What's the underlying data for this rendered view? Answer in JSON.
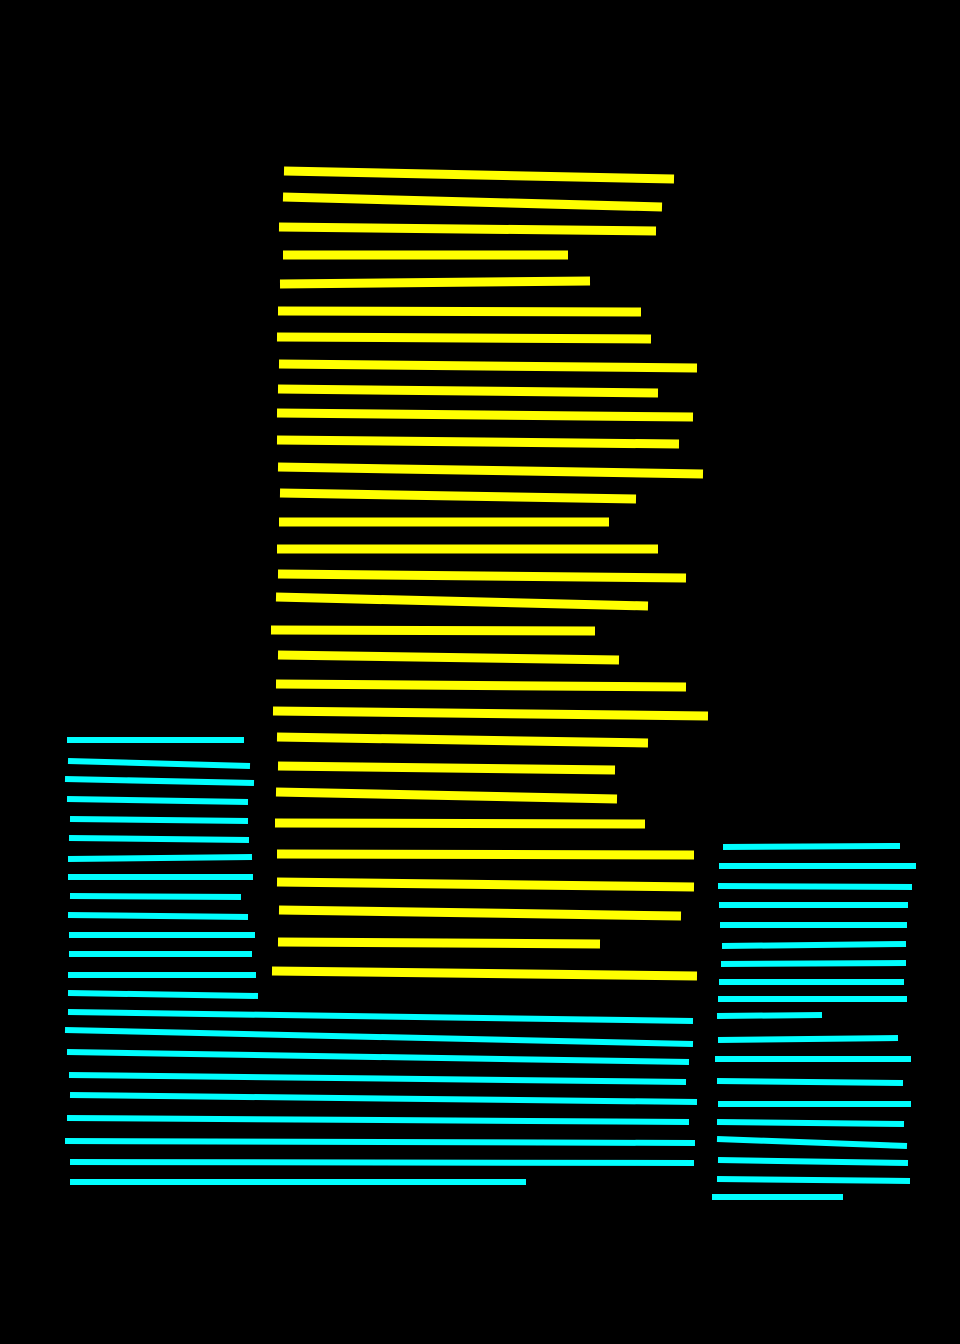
{
  "background_color": "#000000",
  "groups": [
    {
      "name": "yellow-stripe-column",
      "color": "#ffff00",
      "count": 30
    },
    {
      "name": "cyan-stripe-left-block",
      "color": "#00ffff",
      "count": 23
    },
    {
      "name": "cyan-stripe-right-column",
      "color": "#00ffff",
      "count": 19
    }
  ]
}
